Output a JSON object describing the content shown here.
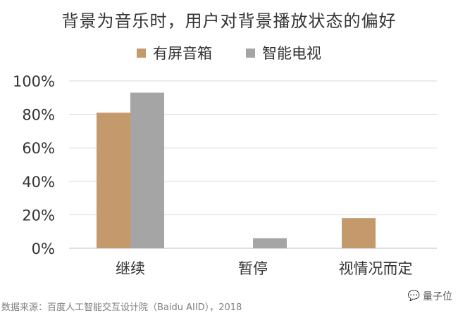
{
  "chart_data": {
    "type": "bar",
    "title": "背景为音乐时，用户对背景播放状态的偏好",
    "categories": [
      "继续",
      "暂停",
      "视情况而定"
    ],
    "series": [
      {
        "name": "有屏音箱",
        "color": "#c49a6c",
        "values": [
          81,
          0,
          18
        ]
      },
      {
        "name": "智能电视",
        "color": "#a5a5a5",
        "values": [
          93,
          6,
          0
        ]
      }
    ],
    "ylim": [
      0,
      100
    ],
    "yticks": [
      "0%",
      "20%",
      "40%",
      "60%",
      "80%",
      "100%"
    ],
    "ytick_values": [
      0,
      20,
      40,
      60,
      80,
      100
    ],
    "grid": true,
    "legend_position": "top-center"
  },
  "source": "数据来源：百度人工智能交互设计院（Baidu AIID），2018",
  "watermark": {
    "icon": "wechat-bubble-icon",
    "text": "量子位"
  }
}
